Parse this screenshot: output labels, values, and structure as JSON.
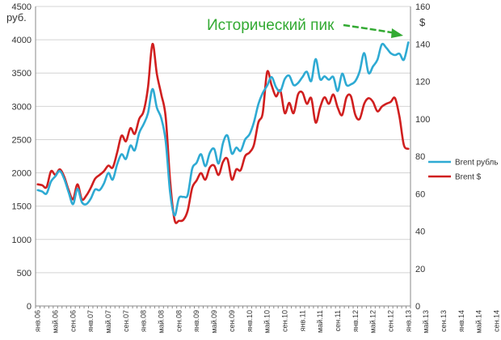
{
  "chart_data": {
    "type": "line",
    "title": "",
    "annotation": "Исторический пик",
    "y_left": {
      "label": "руб.",
      "min": 0,
      "max": 4500,
      "ticks": [
        0,
        500,
        1000,
        1500,
        2000,
        2500,
        3000,
        3500,
        4000,
        4500
      ]
    },
    "y_right": {
      "label": "$",
      "min": 0,
      "max": 160,
      "ticks": [
        0,
        20,
        40,
        60,
        80,
        100,
        120,
        140,
        160
      ]
    },
    "x_ticks": [
      "янв.06",
      "май.06",
      "сен.06",
      "янв.07",
      "май.07",
      "сен.07",
      "янв.08",
      "май.08",
      "сен.08",
      "янв.09",
      "май.09",
      "сен.09",
      "янв.10",
      "май.10",
      "сен.10",
      "янв.11",
      "май.11",
      "сен.11",
      "янв.12",
      "май.12",
      "сен.12",
      "янв.13",
      "май.13",
      "сен.13",
      "янв.14",
      "май.14",
      "сен.14"
    ],
    "grid": "horizontal",
    "legend_position": "right",
    "series": [
      {
        "name": "Brent рубль",
        "axis": "left",
        "color": "#2eaad3",
        "values": [
          1740,
          1720,
          1690,
          1870,
          1950,
          2030,
          1910,
          1710,
          1530,
          1760,
          1560,
          1530,
          1610,
          1750,
          1740,
          1840,
          2000,
          1900,
          2130,
          2280,
          2210,
          2410,
          2340,
          2600,
          2730,
          2900,
          3260,
          2980,
          2820,
          2480,
          1710,
          1360,
          1620,
          1640,
          1670,
          2060,
          2150,
          2280,
          2100,
          2300,
          2360,
          2140,
          2450,
          2560,
          2290,
          2380,
          2330,
          2500,
          2580,
          2760,
          3030,
          3200,
          3310,
          3440,
          3290,
          3230,
          3410,
          3460,
          3320,
          3350,
          3440,
          3520,
          3380,
          3710,
          3410,
          3450,
          3400,
          3440,
          3230,
          3490,
          3320,
          3330,
          3380,
          3530,
          3800,
          3500,
          3600,
          3700,
          3930,
          3880,
          3800,
          3770,
          3790,
          3700,
          3960
        ]
      },
      {
        "name": "Brent $",
        "axis": "right",
        "color": "#d01f1f",
        "values": [
          65,
          64.5,
          63.5,
          72,
          70,
          73,
          69,
          62,
          57,
          65,
          57,
          59,
          63,
          68,
          70,
          72,
          75,
          74,
          82,
          91,
          88,
          95,
          92,
          100,
          104,
          117,
          140,
          124,
          113,
          101,
          67,
          46,
          45.5,
          46,
          51,
          63,
          67,
          71,
          67.5,
          74,
          75,
          70,
          77,
          78.5,
          67.5,
          73,
          72.5,
          80,
          82,
          86,
          98,
          103,
          125,
          118,
          112,
          115,
          103,
          108.5,
          103,
          113,
          114,
          108,
          111,
          98,
          106,
          111.5,
          108,
          113,
          106,
          102,
          111.5,
          112,
          102,
          100,
          108,
          111,
          109,
          104,
          106.5,
          108,
          109,
          111,
          101,
          86,
          84
        ]
      }
    ]
  }
}
